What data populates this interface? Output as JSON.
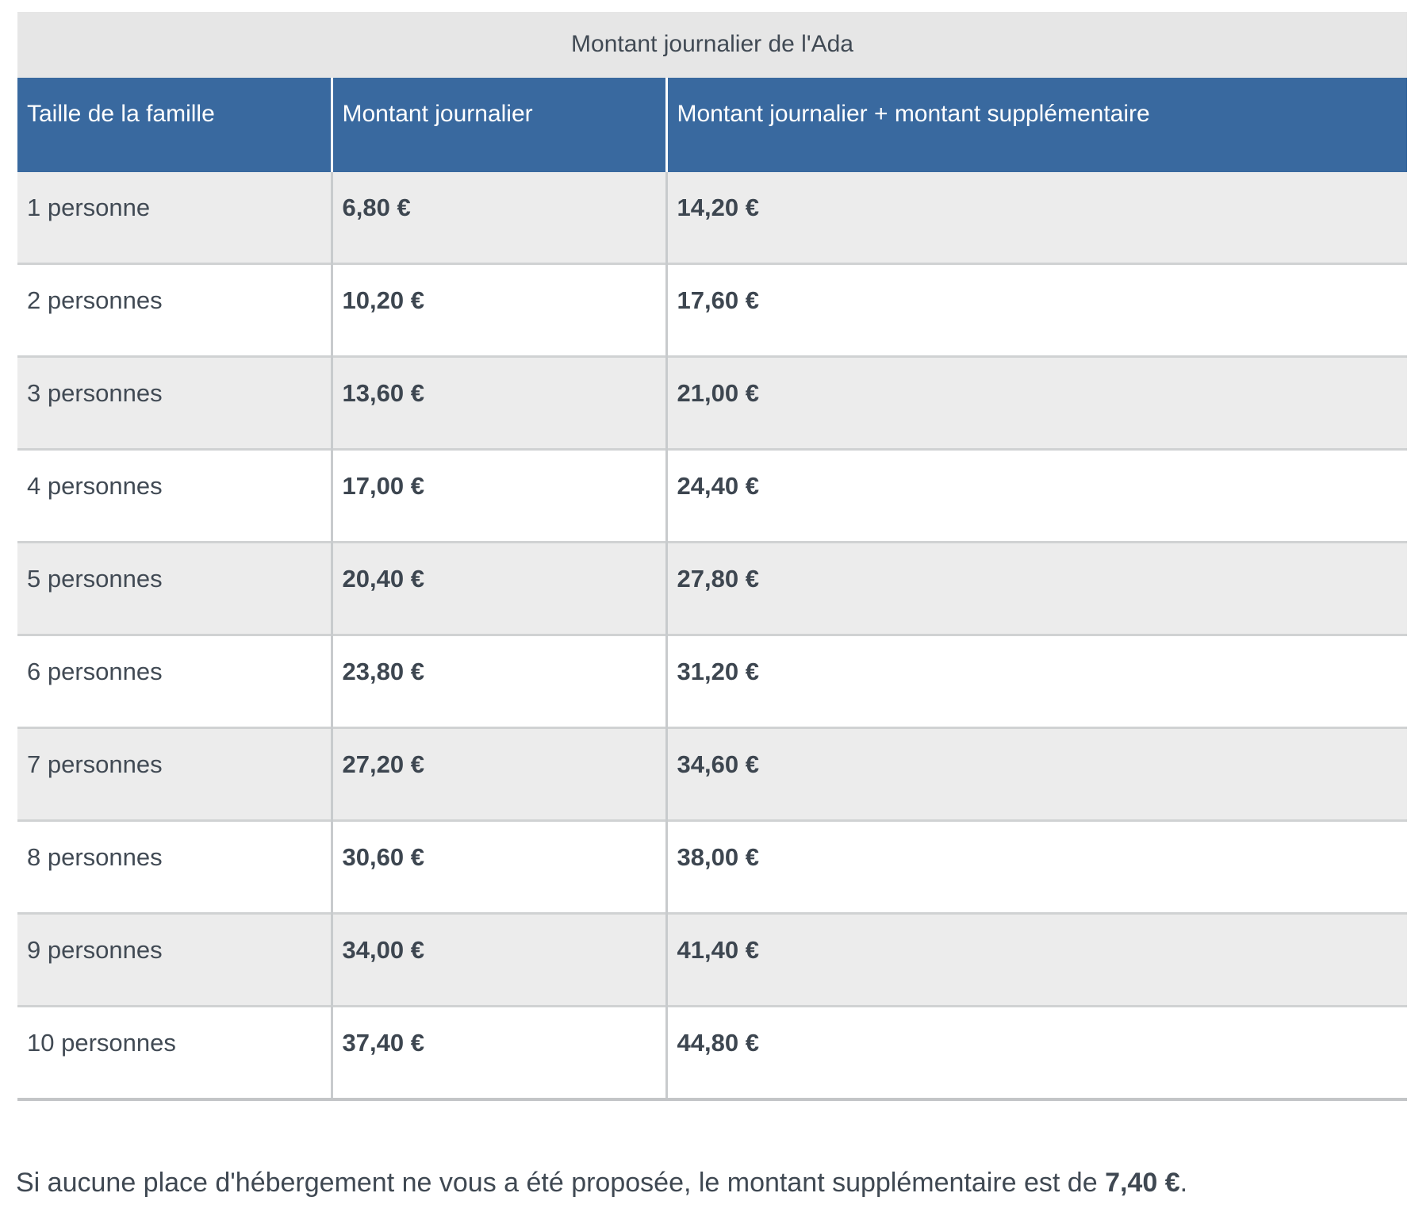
{
  "table": {
    "caption": "Montant journalier de l'Ada",
    "columns": [
      "Taille de la famille",
      "Montant journalier",
      "Montant journalier + montant supplémentaire"
    ],
    "rows": [
      {
        "size": "1 personne",
        "daily": "6,80 €",
        "daily_plus": "14,20 €"
      },
      {
        "size": "2 personnes",
        "daily": "10,20 €",
        "daily_plus": "17,60 €"
      },
      {
        "size": "3 personnes",
        "daily": "13,60 €",
        "daily_plus": "21,00 €"
      },
      {
        "size": "4 personnes",
        "daily": "17,00 €",
        "daily_plus": "24,40 €"
      },
      {
        "size": "5 personnes",
        "daily": "20,40 €",
        "daily_plus": "27,80 €"
      },
      {
        "size": "6 personnes",
        "daily": "23,80 €",
        "daily_plus": "31,20 €"
      },
      {
        "size": "7 personnes",
        "daily": "27,20 €",
        "daily_plus": "34,60 €"
      },
      {
        "size": "8 personnes",
        "daily": "30,60 €",
        "daily_plus": "38,00 €"
      },
      {
        "size": "9 personnes",
        "daily": "34,00 €",
        "daily_plus": "41,40 €"
      },
      {
        "size": "10 personnes",
        "daily": "37,40 €",
        "daily_plus": "44,80 €"
      }
    ]
  },
  "note": {
    "text_before": "Si aucune place d'hébergement ne vous a été proposée, le montant supplémentaire est de ",
    "amount": "7,40 €",
    "text_after": "."
  },
  "colors": {
    "header_bg": "#39699f",
    "header_text": "#ffffff",
    "caption_bg": "#e6e6e6",
    "row_alt_bg": "#ececec",
    "row_bg": "#ffffff",
    "body_text": "#414a54",
    "border": "#c8cbcd"
  }
}
